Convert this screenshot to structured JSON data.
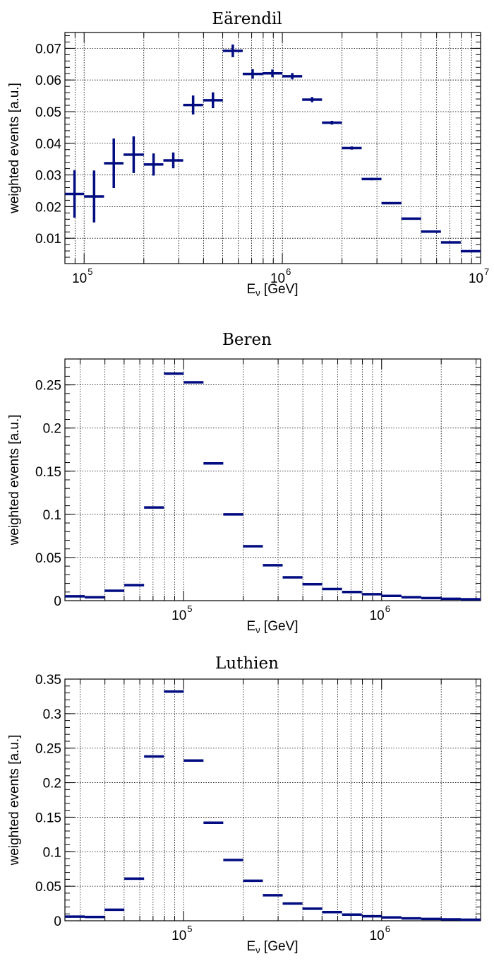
{
  "chart_data": [
    {
      "type": "scatter",
      "title": "Eärendil",
      "xlabel": "E",
      "xlabel_sub": "ν",
      "xlabel_unit": "[GeV]",
      "ylabel": "weighted events [a.u.]",
      "xscale": "log",
      "xlim": [
        80000,
        10000000
      ],
      "ylim": [
        0.002,
        0.075
      ],
      "grid": true,
      "color": "#000c80",
      "yticks": [
        0.01,
        0.02,
        0.03,
        0.04,
        0.05,
        0.06,
        0.07
      ],
      "ytick_labels": [
        "0.01",
        "0.02",
        "0.03",
        "0.04",
        "0.05",
        "0.06",
        "0.07"
      ],
      "xticks": [
        100000,
        1000000,
        10000000
      ],
      "xtick_labels": [
        {
          "base": "10",
          "exp": "5"
        },
        {
          "base": "10",
          "exp": "6"
        },
        {
          "base": "10",
          "exp": "7"
        }
      ],
      "bins": [
        {
          "x": [
            80000,
            100000
          ],
          "y": 0.024,
          "err": 0.0075
        },
        {
          "x": [
            100000,
            126000
          ],
          "y": 0.0232,
          "err": 0.0082
        },
        {
          "x": [
            126000,
            158000
          ],
          "y": 0.0337,
          "err": 0.0078
        },
        {
          "x": [
            158000,
            200000
          ],
          "y": 0.0364,
          "err": 0.0058
        },
        {
          "x": [
            200000,
            251000
          ],
          "y": 0.0333,
          "err": 0.0035
        },
        {
          "x": [
            251000,
            316000
          ],
          "y": 0.0346,
          "err": 0.0025
        },
        {
          "x": [
            316000,
            398000
          ],
          "y": 0.0521,
          "err": 0.003
        },
        {
          "x": [
            398000,
            501000
          ],
          "y": 0.0536,
          "err": 0.0025
        },
        {
          "x": [
            501000,
            631000
          ],
          "y": 0.0692,
          "err": 0.002
        },
        {
          "x": [
            631000,
            794000
          ],
          "y": 0.0619,
          "err": 0.0015
        },
        {
          "x": [
            794000,
            1000000
          ],
          "y": 0.0621,
          "err": 0.0012
        },
        {
          "x": [
            1000000,
            1259000
          ],
          "y": 0.0612,
          "err": 0.001
        },
        {
          "x": [
            1259000,
            1585000
          ],
          "y": 0.0538,
          "err": 0.0008
        },
        {
          "x": [
            1585000,
            1995000
          ],
          "y": 0.0465,
          "err": 0.0006
        },
        {
          "x": [
            1995000,
            2512000
          ],
          "y": 0.0385,
          "err": 0.0005
        },
        {
          "x": [
            2512000,
            3162000
          ],
          "y": 0.0287,
          "err": 0.0004
        },
        {
          "x": [
            3162000,
            3981000
          ],
          "y": 0.0211,
          "err": 0.0003
        },
        {
          "x": [
            3981000,
            5012000
          ],
          "y": 0.0162,
          "err": 0.0002
        },
        {
          "x": [
            5012000,
            6310000
          ],
          "y": 0.0121,
          "err": 0.0002
        },
        {
          "x": [
            6310000,
            7943000
          ],
          "y": 0.0087,
          "err": 0.0001
        },
        {
          "x": [
            7943000,
            10000000
          ],
          "y": 0.0059,
          "err": 0.0001
        }
      ]
    },
    {
      "type": "scatter",
      "title": "Beren",
      "xlabel": "E",
      "xlabel_sub": "ν",
      "xlabel_unit": "[GeV]",
      "ylabel": "weighted events [a.u.]",
      "xscale": "log",
      "xlim": [
        25119,
        3162278
      ],
      "ylim": [
        0,
        0.28
      ],
      "grid": true,
      "color": "#000c80",
      "yticks": [
        0,
        0.05,
        0.1,
        0.15,
        0.2,
        0.25
      ],
      "ytick_labels": [
        "0",
        "0.05",
        "0.1",
        "0.15",
        "0.2",
        "0.25"
      ],
      "xticks": [
        100000,
        1000000
      ],
      "xtick_labels": [
        {
          "base": "10",
          "exp": "5"
        },
        {
          "base": "10",
          "exp": "6"
        }
      ],
      "bins": [
        {
          "x": [
            25119,
            31623
          ],
          "y": 0.005,
          "err": 0
        },
        {
          "x": [
            31623,
            39811
          ],
          "y": 0.004,
          "err": 0
        },
        {
          "x": [
            39811,
            50119
          ],
          "y": 0.0115,
          "err": 0
        },
        {
          "x": [
            50119,
            63096
          ],
          "y": 0.018,
          "err": 0
        },
        {
          "x": [
            63096,
            79433
          ],
          "y": 0.108,
          "err": 0
        },
        {
          "x": [
            79433,
            100000
          ],
          "y": 0.263,
          "err": 0.0008
        },
        {
          "x": [
            100000,
            125893
          ],
          "y": 0.253,
          "err": 0.0008
        },
        {
          "x": [
            125893,
            158489
          ],
          "y": 0.159,
          "err": 0.0005
        },
        {
          "x": [
            158489,
            199526
          ],
          "y": 0.1,
          "err": 0
        },
        {
          "x": [
            199526,
            251189
          ],
          "y": 0.063,
          "err": 0
        },
        {
          "x": [
            251189,
            316228
          ],
          "y": 0.041,
          "err": 0
        },
        {
          "x": [
            316228,
            398107
          ],
          "y": 0.027,
          "err": 0
        },
        {
          "x": [
            398107,
            501187
          ],
          "y": 0.019,
          "err": 0
        },
        {
          "x": [
            501187,
            630957
          ],
          "y": 0.0135,
          "err": 0
        },
        {
          "x": [
            630957,
            794328
          ],
          "y": 0.01,
          "err": 0
        },
        {
          "x": [
            794328,
            1000000
          ],
          "y": 0.0075,
          "err": 0
        },
        {
          "x": [
            1000000,
            1258925
          ],
          "y": 0.0055,
          "err": 0
        },
        {
          "x": [
            1258925,
            1584893
          ],
          "y": 0.004,
          "err": 0
        },
        {
          "x": [
            1584893,
            1995262
          ],
          "y": 0.003,
          "err": 0
        },
        {
          "x": [
            1995262,
            2511886
          ],
          "y": 0.0022,
          "err": 0
        },
        {
          "x": [
            2511886,
            3162278
          ],
          "y": 0.0016,
          "err": 0
        }
      ]
    },
    {
      "type": "scatter",
      "title": "Luthien",
      "xlabel": "E",
      "xlabel_sub": "ν",
      "xlabel_unit": "[GeV]",
      "ylabel": "weighted events [a.u.]",
      "xscale": "log",
      "xlim": [
        25119,
        3162278
      ],
      "ylim": [
        0,
        0.35
      ],
      "grid": true,
      "color": "#000c80",
      "yticks": [
        0,
        0.05,
        0.1,
        0.15,
        0.2,
        0.25,
        0.3,
        0.35
      ],
      "ytick_labels": [
        "0",
        "0.05",
        "0.1",
        "0.15",
        "0.2",
        "0.25",
        "0.3",
        "0.35"
      ],
      "xticks": [
        100000,
        1000000
      ],
      "xtick_labels": [
        {
          "base": "10",
          "exp": "5"
        },
        {
          "base": "10",
          "exp": "6"
        }
      ],
      "bins": [
        {
          "x": [
            25119,
            31623
          ],
          "y": 0.006,
          "err": 0
        },
        {
          "x": [
            31623,
            39811
          ],
          "y": 0.0055,
          "err": 0
        },
        {
          "x": [
            39811,
            50119
          ],
          "y": 0.016,
          "err": 0
        },
        {
          "x": [
            50119,
            63096
          ],
          "y": 0.061,
          "err": 0
        },
        {
          "x": [
            63096,
            79433
          ],
          "y": 0.238,
          "err": 0.001
        },
        {
          "x": [
            79433,
            100000
          ],
          "y": 0.332,
          "err": 0.0015
        },
        {
          "x": [
            100000,
            125893
          ],
          "y": 0.232,
          "err": 0.001
        },
        {
          "x": [
            125893,
            158489
          ],
          "y": 0.142,
          "err": 0
        },
        {
          "x": [
            158489,
            199526
          ],
          "y": 0.088,
          "err": 0
        },
        {
          "x": [
            199526,
            251189
          ],
          "y": 0.058,
          "err": 0
        },
        {
          "x": [
            251189,
            316228
          ],
          "y": 0.037,
          "err": 0
        },
        {
          "x": [
            316228,
            398107
          ],
          "y": 0.025,
          "err": 0
        },
        {
          "x": [
            398107,
            501187
          ],
          "y": 0.0175,
          "err": 0
        },
        {
          "x": [
            501187,
            630957
          ],
          "y": 0.0125,
          "err": 0
        },
        {
          "x": [
            630957,
            794328
          ],
          "y": 0.009,
          "err": 0
        },
        {
          "x": [
            794328,
            1000000
          ],
          "y": 0.0065,
          "err": 0
        },
        {
          "x": [
            1000000,
            1258925
          ],
          "y": 0.0048,
          "err": 0
        },
        {
          "x": [
            1258925,
            1584893
          ],
          "y": 0.0035,
          "err": 0
        },
        {
          "x": [
            1584893,
            1995262
          ],
          "y": 0.0027,
          "err": 0
        },
        {
          "x": [
            1995262,
            2511886
          ],
          "y": 0.002,
          "err": 0
        },
        {
          "x": [
            2511886,
            3162278
          ],
          "y": 0.0015,
          "err": 0
        }
      ]
    }
  ]
}
